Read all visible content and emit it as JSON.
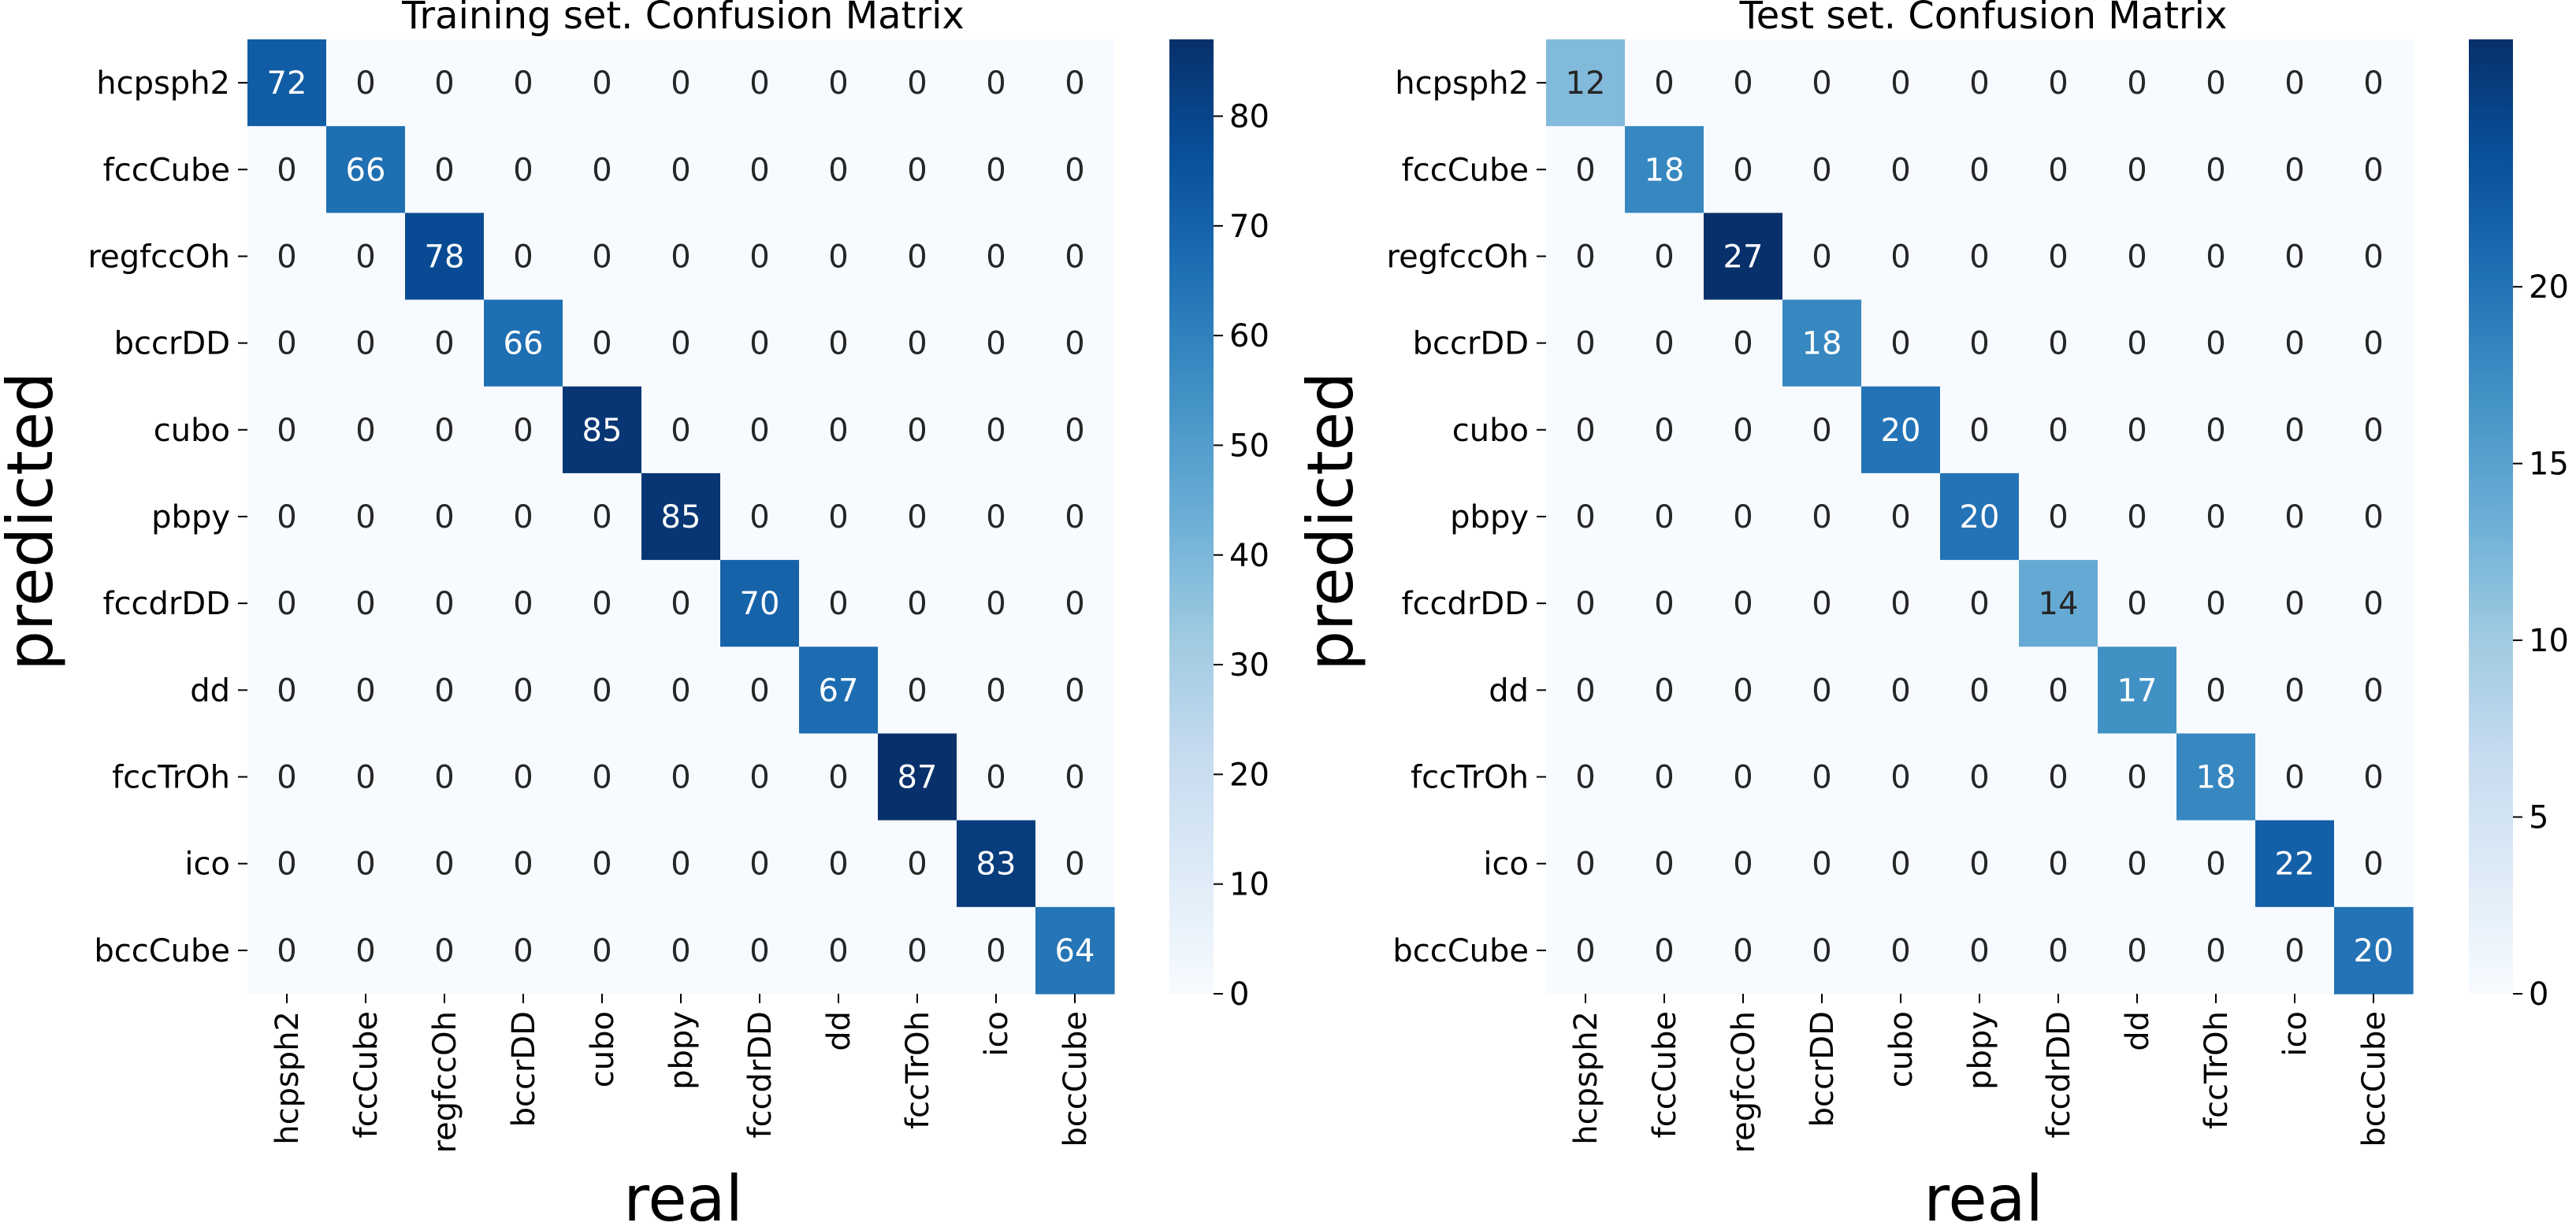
{
  "chart_data": [
    {
      "type": "heatmap",
      "title": "Training set. Confusion Matrix",
      "xlabel": "real",
      "ylabel": "predicted",
      "x_categories": [
        "hcpsph2",
        "fccCube",
        "regfccOh",
        "bccrDD",
        "cubo",
        "pbpy",
        "fccdrDD",
        "dd",
        "fccTrOh",
        "ico",
        "bccCube"
      ],
      "y_categories": [
        "hcpsph2",
        "fccCube",
        "regfccOh",
        "bccrDD",
        "cubo",
        "pbpy",
        "fccdrDD",
        "dd",
        "fccTrOh",
        "ico",
        "bccCube"
      ],
      "values": [
        [
          72,
          0,
          0,
          0,
          0,
          0,
          0,
          0,
          0,
          0,
          0
        ],
        [
          0,
          66,
          0,
          0,
          0,
          0,
          0,
          0,
          0,
          0,
          0
        ],
        [
          0,
          0,
          78,
          0,
          0,
          0,
          0,
          0,
          0,
          0,
          0
        ],
        [
          0,
          0,
          0,
          66,
          0,
          0,
          0,
          0,
          0,
          0,
          0
        ],
        [
          0,
          0,
          0,
          0,
          85,
          0,
          0,
          0,
          0,
          0,
          0
        ],
        [
          0,
          0,
          0,
          0,
          0,
          85,
          0,
          0,
          0,
          0,
          0
        ],
        [
          0,
          0,
          0,
          0,
          0,
          0,
          70,
          0,
          0,
          0,
          0
        ],
        [
          0,
          0,
          0,
          0,
          0,
          0,
          0,
          67,
          0,
          0,
          0
        ],
        [
          0,
          0,
          0,
          0,
          0,
          0,
          0,
          0,
          87,
          0,
          0
        ],
        [
          0,
          0,
          0,
          0,
          0,
          0,
          0,
          0,
          0,
          83,
          0
        ],
        [
          0,
          0,
          0,
          0,
          0,
          0,
          0,
          0,
          0,
          0,
          64
        ]
      ],
      "colorbar": {
        "colormap": "Blues",
        "range": [
          0,
          87
        ],
        "ticks": [
          0,
          10,
          20,
          30,
          40,
          50,
          60,
          70,
          80
        ]
      }
    },
    {
      "type": "heatmap",
      "title": "Test set. Confusion Matrix",
      "xlabel": "real",
      "ylabel": "predicted",
      "x_categories": [
        "hcpsph2",
        "fccCube",
        "regfccOh",
        "bccrDD",
        "cubo",
        "pbpy",
        "fccdrDD",
        "dd",
        "fccTrOh",
        "ico",
        "bccCube"
      ],
      "y_categories": [
        "hcpsph2",
        "fccCube",
        "regfccOh",
        "bccrDD",
        "cubo",
        "pbpy",
        "fccdrDD",
        "dd",
        "fccTrOh",
        "ico",
        "bccCube"
      ],
      "values": [
        [
          12,
          0,
          0,
          0,
          0,
          0,
          0,
          0,
          0,
          0,
          0
        ],
        [
          0,
          18,
          0,
          0,
          0,
          0,
          0,
          0,
          0,
          0,
          0
        ],
        [
          0,
          0,
          27,
          0,
          0,
          0,
          0,
          0,
          0,
          0,
          0
        ],
        [
          0,
          0,
          0,
          18,
          0,
          0,
          0,
          0,
          0,
          0,
          0
        ],
        [
          0,
          0,
          0,
          0,
          20,
          0,
          0,
          0,
          0,
          0,
          0
        ],
        [
          0,
          0,
          0,
          0,
          0,
          20,
          0,
          0,
          0,
          0,
          0
        ],
        [
          0,
          0,
          0,
          0,
          0,
          0,
          14,
          0,
          0,
          0,
          0
        ],
        [
          0,
          0,
          0,
          0,
          0,
          0,
          0,
          17,
          0,
          0,
          0
        ],
        [
          0,
          0,
          0,
          0,
          0,
          0,
          0,
          0,
          18,
          0,
          0
        ],
        [
          0,
          0,
          0,
          0,
          0,
          0,
          0,
          0,
          0,
          22,
          0
        ],
        [
          0,
          0,
          0,
          0,
          0,
          0,
          0,
          0,
          0,
          0,
          20
        ]
      ],
      "colorbar": {
        "colormap": "Blues",
        "range": [
          0,
          27
        ],
        "ticks": [
          0,
          5,
          10,
          15,
          20
        ]
      }
    }
  ]
}
